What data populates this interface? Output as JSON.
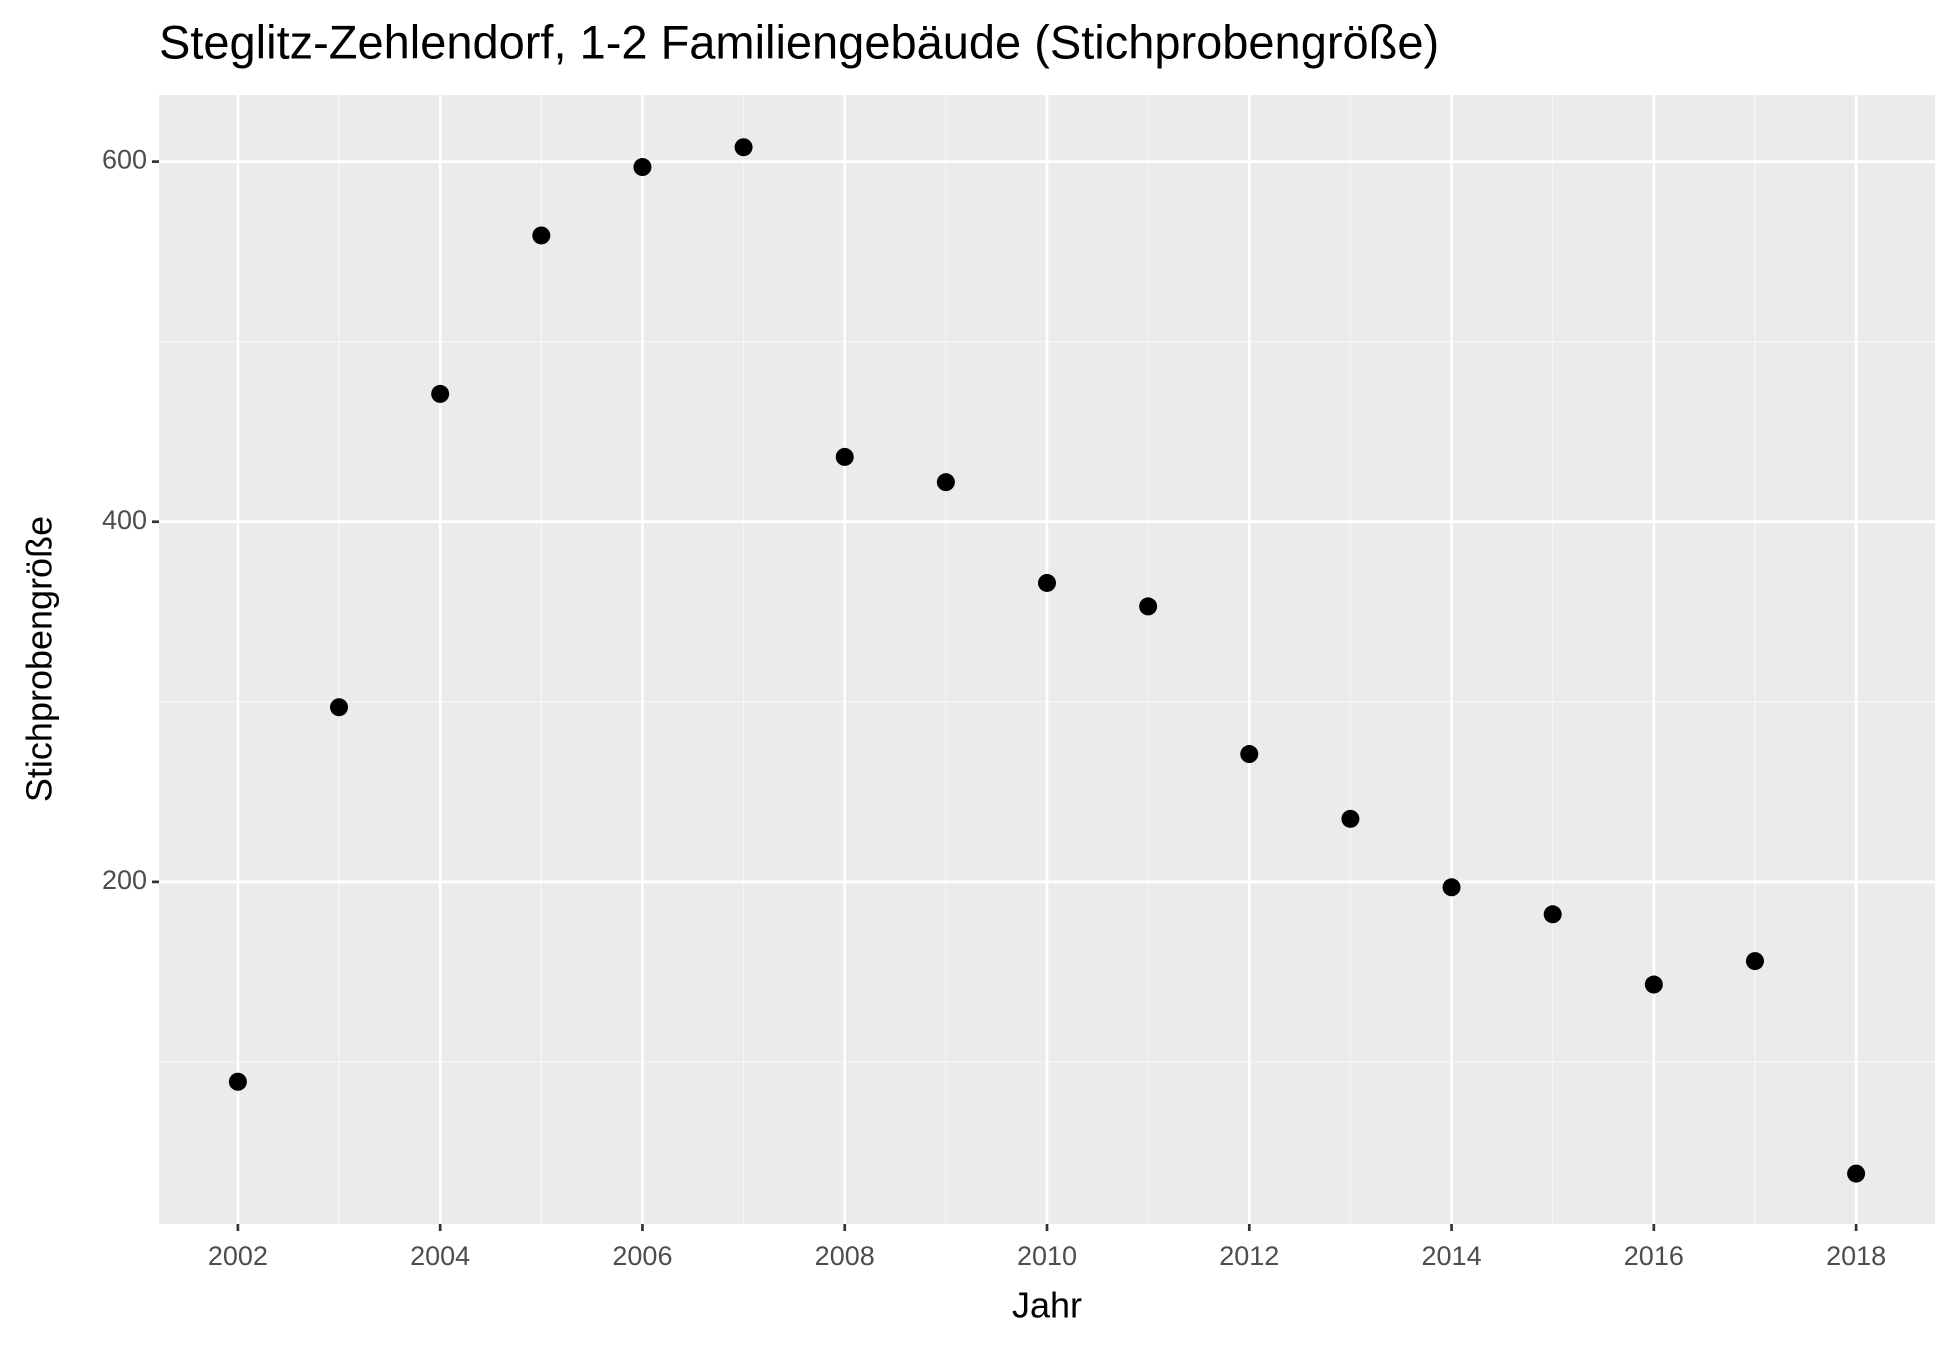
{
  "chart_data": {
    "type": "scatter",
    "title": "Steglitz-Zehlendorf, 1-2 Familiengebäude (Stichprobengröße)",
    "x_label": "Jahr",
    "y_label": "Stichprobengröße",
    "x": [
      2002,
      2003,
      2004,
      2005,
      2006,
      2007,
      2008,
      2009,
      2010,
      2011,
      2012,
      2013,
      2014,
      2015,
      2016,
      2017,
      2018
    ],
    "values": [
      89,
      297,
      471,
      559,
      597,
      608,
      436,
      422,
      366,
      353,
      271,
      235,
      197,
      182,
      143,
      156,
      38
    ],
    "color": "#000000",
    "xlim": [
      2001.22,
      2018.78
    ],
    "ylim": [
      10,
      637
    ],
    "xticks": [
      2002,
      2004,
      2006,
      2008,
      2010,
      2012,
      2014,
      2016,
      2018
    ],
    "yticks": [
      200,
      400,
      600
    ],
    "grid": true
  }
}
